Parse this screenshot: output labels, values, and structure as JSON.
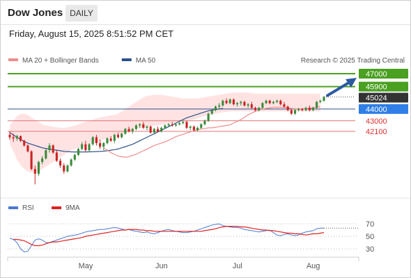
{
  "header": {
    "title": "Dow Jones",
    "timeframe_label": "DAILY"
  },
  "datetime": "Friday, August 15, 2025 8:51:52 PM CET",
  "legend": [
    {
      "label": "MA 20 + Bollinger Bands",
      "color": "#f08c8c"
    },
    {
      "label": "MA 50",
      "color": "#2c4f8a"
    }
  ],
  "credit": "Research © 2025 Trading Central",
  "colors": {
    "up": "#3a8a3a",
    "down": "#cc2222",
    "resistance": "#4aa020",
    "support": "#e07070",
    "pivot": "#2c4f8a",
    "arrow": "#2c5aa0",
    "band": "#ffe0e0"
  },
  "chart_data": [
    {
      "type": "candlestick",
      "title": "Dow Jones",
      "x_ticks": [
        "May",
        "Jun",
        "Jul",
        "Aug"
      ],
      "y_range": [
        38000,
        47500
      ],
      "levels": [
        {
          "label": "47000",
          "value": 47000,
          "kind": "resistance"
        },
        {
          "label": "45900",
          "value": 45900,
          "kind": "resistance"
        },
        {
          "label": "45024",
          "value": 45024,
          "kind": "last"
        },
        {
          "label": "44000",
          "value": 44000,
          "kind": "pivot"
        },
        {
          "label": "43000",
          "value": 43000,
          "kind": "support"
        },
        {
          "label": "42100",
          "value": 42100,
          "kind": "support"
        }
      ],
      "last_close": 45024,
      "projection": {
        "from": 45024,
        "to": 47000
      },
      "candles": [
        [
          41800,
          42100,
          41400,
          41600
        ],
        [
          41600,
          41900,
          41200,
          41500
        ],
        [
          41500,
          41800,
          41300,
          41700
        ],
        [
          41700,
          41750,
          41200,
          41300
        ],
        [
          41300,
          41400,
          40800,
          40900
        ],
        [
          40900,
          41000,
          40300,
          40400
        ],
        [
          40400,
          40500,
          38800,
          38900
        ],
        [
          38900,
          39200,
          37600,
          38500
        ],
        [
          38500,
          39600,
          38300,
          39500
        ],
        [
          39500,
          40000,
          39300,
          39800
        ],
        [
          39800,
          40600,
          39700,
          40500
        ],
        [
          40500,
          41100,
          40300,
          40900
        ],
        [
          40900,
          41000,
          40200,
          40300
        ],
        [
          40300,
          40500,
          39500,
          39600
        ],
        [
          39600,
          39800,
          39000,
          39200
        ],
        [
          39200,
          39400,
          38500,
          38700
        ],
        [
          38700,
          39300,
          38600,
          39200
        ],
        [
          39200,
          39800,
          39100,
          39700
        ],
        [
          39700,
          40200,
          39600,
          40100
        ],
        [
          40100,
          40700,
          40000,
          40600
        ],
        [
          40600,
          41200,
          40500,
          41000
        ],
        [
          41000,
          41300,
          40400,
          40500
        ],
        [
          40500,
          41100,
          40400,
          41000
        ],
        [
          41000,
          41700,
          40900,
          41600
        ],
        [
          41600,
          41800,
          40900,
          41100
        ],
        [
          41100,
          41400,
          40600,
          40800
        ],
        [
          40800,
          41200,
          40500,
          41100
        ],
        [
          41100,
          41600,
          41000,
          41500
        ],
        [
          41500,
          41700,
          41200,
          41300
        ],
        [
          41300,
          41900,
          41100,
          41800
        ],
        [
          41800,
          42000,
          41500,
          41600
        ],
        [
          41600,
          42000,
          41500,
          41900
        ],
        [
          41900,
          42400,
          41800,
          42300
        ],
        [
          42300,
          42500,
          42000,
          42100
        ],
        [
          42100,
          42400,
          41900,
          42300
        ],
        [
          42300,
          42700,
          42200,
          42600
        ],
        [
          42600,
          42800,
          42400,
          42700
        ],
        [
          42700,
          42900,
          42300,
          42400
        ],
        [
          42400,
          42600,
          42200,
          42500
        ],
        [
          42500,
          42600,
          41900,
          42000
        ],
        [
          42000,
          42400,
          41900,
          42300
        ],
        [
          42300,
          42500,
          42000,
          42100
        ],
        [
          42100,
          42500,
          42000,
          42400
        ],
        [
          42400,
          42700,
          42300,
          42600
        ],
        [
          42600,
          42800,
          42500,
          42700
        ],
        [
          42700,
          42900,
          42500,
          42600
        ],
        [
          42600,
          42800,
          42500,
          42700
        ],
        [
          42700,
          42900,
          42600,
          42800
        ],
        [
          42800,
          43000,
          42700,
          42900
        ],
        [
          42900,
          43000,
          42300,
          42400
        ],
        [
          42400,
          42600,
          42200,
          42500
        ],
        [
          42500,
          42600,
          42100,
          42200
        ],
        [
          42200,
          42500,
          42100,
          42400
        ],
        [
          42400,
          42800,
          42300,
          42700
        ],
        [
          42700,
          43100,
          42600,
          43000
        ],
        [
          43000,
          43700,
          42900,
          43600
        ],
        [
          43600,
          44000,
          43500,
          43900
        ],
        [
          43900,
          44300,
          43800,
          44200
        ],
        [
          44200,
          44500,
          44000,
          44300
        ],
        [
          44300,
          44800,
          44200,
          44700
        ],
        [
          44700,
          44900,
          44400,
          44500
        ],
        [
          44500,
          44900,
          44400,
          44800
        ],
        [
          44800,
          44900,
          44300,
          44400
        ],
        [
          44400,
          44600,
          44200,
          44500
        ],
        [
          44500,
          44700,
          44300,
          44600
        ],
        [
          44600,
          44700,
          44200,
          44300
        ],
        [
          44300,
          44500,
          44100,
          44400
        ],
        [
          44400,
          44600,
          44000,
          44100
        ],
        [
          44100,
          44200,
          43800,
          43900
        ],
        [
          43900,
          44200,
          43800,
          44100
        ],
        [
          44100,
          44600,
          44000,
          44500
        ],
        [
          44500,
          44800,
          44400,
          44700
        ],
        [
          44700,
          44800,
          44400,
          44500
        ],
        [
          44500,
          44700,
          44400,
          44600
        ],
        [
          44600,
          44800,
          44500,
          44700
        ],
        [
          44700,
          44800,
          44300,
          44400
        ],
        [
          44400,
          44600,
          44100,
          44200
        ],
        [
          44200,
          44300,
          43800,
          43900
        ],
        [
          43900,
          44000,
          43500,
          43600
        ],
        [
          43600,
          44000,
          43500,
          43900
        ],
        [
          43900,
          44100,
          43800,
          44000
        ],
        [
          44000,
          44100,
          43800,
          43900
        ],
        [
          43900,
          44200,
          43800,
          44100
        ],
        [
          44100,
          44300,
          43800,
          43900
        ],
        [
          43900,
          44200,
          43800,
          44100
        ],
        [
          44100,
          44700,
          44000,
          44600
        ],
        [
          44600,
          44800,
          44500,
          44700
        ],
        [
          44700,
          45100,
          44600,
          45024
        ]
      ],
      "ma20": [
        40700,
        40500,
        40300,
        40150,
        40000,
        39950,
        39900,
        39950,
        40050,
        40150,
        40300,
        40450,
        40600,
        40750,
        40900,
        41000,
        41100,
        41200,
        41350,
        41500,
        41650,
        41750,
        41850,
        41950,
        42050,
        42150,
        42250,
        42300,
        42350,
        42400,
        42400,
        42450,
        42500,
        42550,
        42600,
        42650,
        42800,
        42950,
        43100,
        43300,
        43500,
        43650,
        43800,
        43900,
        44000,
        44050,
        44100,
        44150,
        44150,
        44150,
        44150,
        44100,
        44050,
        44000,
        44000,
        44000,
        44000,
        44050,
        44100,
        44150,
        44200
      ],
      "ma20_start": 26,
      "ma50": [
        42000,
        41800,
        41600,
        41400,
        41250,
        41100,
        41000,
        40900,
        40800,
        40700,
        40650,
        40600,
        40550,
        40500,
        40450,
        40400,
        40380,
        40360,
        40350,
        40350,
        40350,
        40350,
        40360,
        40370,
        40380,
        40400,
        40420,
        40450,
        40500,
        40550,
        40600,
        40700,
        40800,
        40900,
        41000,
        41150,
        41300,
        41450,
        41600,
        41750,
        41900,
        42050,
        42200,
        42350,
        42500,
        42650,
        42800,
        42950,
        43100,
        43250,
        43350,
        43450,
        43550,
        43650,
        43750,
        43850,
        43900,
        43950,
        44000,
        44050
      ],
      "bands_upper": [
        42600,
        43000,
        43400,
        43600,
        43600,
        43500,
        43300,
        43100,
        42900,
        42700,
        42600,
        42550,
        42500,
        42450,
        42400,
        42400,
        42450,
        42500,
        42600,
        42700,
        42800,
        42900,
        43000,
        43100,
        43200,
        43300,
        43350,
        43400,
        43450,
        43500,
        43600,
        43800,
        44000,
        44200,
        44400,
        44600,
        44800,
        45000,
        45100,
        45150,
        45200,
        45200,
        45200,
        45150,
        45100,
        45050,
        45000,
        44950,
        44900,
        44900,
        44900,
        44900,
        44900,
        44950,
        45000,
        45050,
        45100,
        45150,
        45200,
        45250,
        45300,
        45350,
        45400,
        45400,
        45400,
        45400,
        45400,
        45350,
        45300,
        45300,
        45300,
        45300,
        45300,
        45300,
        45300,
        45300,
        45300,
        45300,
        45300,
        45300,
        45300,
        45300,
        45300,
        45300,
        45300,
        45300,
        45300
      ],
      "bands_lower": [
        41000,
        40400,
        39700,
        39200,
        38900,
        38700,
        38600,
        38600,
        38700,
        38900,
        39100,
        39300,
        39500,
        39700,
        39900,
        40100,
        40300,
        40500,
        40600,
        40700,
        40800,
        40900,
        41000,
        41100,
        41200,
        41300,
        41400,
        41500,
        41600,
        41700,
        41800,
        41900,
        42000,
        42100,
        42200,
        42300,
        42350,
        42400,
        42450,
        42500,
        42550,
        42600,
        42650,
        42700,
        42750,
        42800,
        42850,
        42900,
        42950,
        43000,
        43050,
        43100,
        43200,
        43300,
        43400,
        43500,
        43550,
        43600,
        43650,
        43700,
        43750,
        43800,
        43800,
        43800,
        43800,
        43800,
        43800,
        43800,
        43800,
        43800,
        43800,
        43800,
        43800,
        43800,
        43800,
        43800,
        43800,
        43800,
        43800,
        43800,
        43800,
        43800,
        43800,
        43800,
        43800,
        43800,
        43800
      ]
    },
    {
      "type": "line",
      "legend": [
        {
          "label": "RSI",
          "color": "#4a78d0"
        },
        {
          "label": "9MA",
          "color": "#dd2222"
        }
      ],
      "y_range": [
        20,
        80
      ],
      "y_ticks": [
        70,
        50,
        30
      ],
      "rsi": [
        47,
        45,
        40,
        30,
        25,
        26,
        35,
        44,
        46,
        44,
        40,
        40,
        42,
        44,
        46,
        48,
        50,
        51,
        52,
        53,
        55,
        57,
        58,
        59,
        60,
        61,
        61,
        62,
        63,
        64,
        63,
        62,
        60,
        61,
        59,
        58,
        57,
        56,
        57,
        55,
        54,
        56,
        58,
        60,
        61,
        59,
        58,
        57,
        56,
        56,
        57,
        58,
        60,
        62,
        64,
        66,
        68,
        69,
        70,
        67,
        66,
        65,
        64,
        64,
        63,
        61,
        60,
        59,
        58,
        57,
        58,
        59,
        60,
        56,
        52,
        51,
        53,
        54,
        52,
        51,
        52,
        55,
        57,
        58,
        59,
        62,
        63,
        63
      ],
      "rsi_ma": [
        45,
        45,
        44,
        43,
        40,
        37,
        35,
        35,
        36,
        38,
        40,
        41,
        41,
        42,
        43,
        44,
        45,
        46,
        47,
        48,
        50,
        51,
        52,
        53,
        54,
        55,
        56,
        57,
        58,
        59,
        60,
        60,
        61,
        61,
        61,
        60,
        60,
        59,
        59,
        58,
        58,
        58,
        58,
        58,
        58,
        58,
        58,
        58,
        58,
        58,
        58,
        58,
        58,
        59,
        60,
        61,
        62,
        64,
        65,
        66,
        66,
        66,
        66,
        65,
        65,
        64,
        63,
        62,
        61,
        60,
        60,
        59,
        59,
        58,
        57,
        56,
        55,
        55,
        54,
        54,
        53,
        52,
        53,
        54,
        54,
        55,
        56
      ]
    }
  ]
}
